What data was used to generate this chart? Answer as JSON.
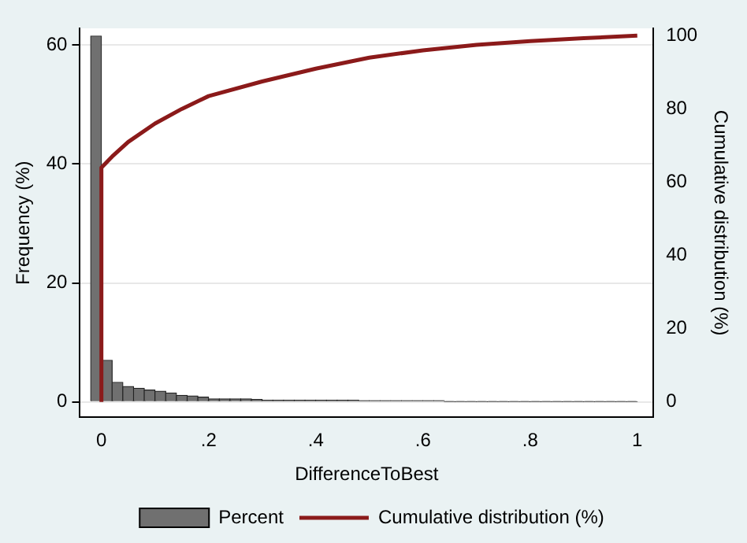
{
  "chart_data": {
    "type": "histogram",
    "xlabel": "DifferenceToBest",
    "ylabel": "Frequency (%)",
    "y2label": "Cumulative distribution (%)",
    "bins": [
      -0.02,
      0,
      0.02,
      0.04,
      0.06,
      0.08,
      0.1,
      0.12,
      0.14,
      0.16,
      0.18,
      0.2,
      0.22,
      0.24,
      0.26,
      0.28,
      0.3,
      0.32,
      0.34,
      0.36,
      0.38,
      0.4,
      0.42,
      0.44,
      0.46,
      0.48,
      0.5,
      0.52,
      0.54,
      0.56,
      0.58,
      0.6,
      0.62,
      0.64,
      0.66,
      0.68,
      0.7,
      0.72,
      0.74,
      0.76,
      0.78,
      0.8,
      0.82,
      0.84,
      0.86,
      0.88,
      0.9,
      0.92,
      0.94,
      0.96,
      0.98,
      1.0
    ],
    "series": [
      {
        "name": "Percent",
        "type": "histogram",
        "color": "#707070",
        "values": [
          61.5,
          7,
          3.3,
          2.6,
          2.3,
          2.0,
          1.8,
          1.5,
          1.1,
          1.0,
          0.8,
          0.5,
          0.5,
          0.5,
          0.5,
          0.4,
          0.3,
          0.3,
          0.3,
          0.3,
          0.3,
          0.3,
          0.3,
          0.3,
          0.3,
          0.2,
          0.2,
          0.2,
          0.2,
          0.2,
          0.2,
          0.2,
          0.2,
          0.1,
          0.1,
          0.1,
          0.1,
          0.1,
          0.1,
          0.1,
          0.1,
          0.1,
          0.1,
          0.1,
          0.1,
          0.1,
          0.1,
          0.1,
          0.1,
          0.1,
          0.1
        ]
      },
      {
        "name": "Cumulative distribution (%)",
        "type": "line",
        "axis": "y2",
        "color": "#8b1a1a",
        "x": [
          0,
          0,
          0.02,
          0.05,
          0.1,
          0.15,
          0.2,
          0.3,
          0.4,
          0.5,
          0.6,
          0.7,
          0.8,
          0.9,
          1.0
        ],
        "values": [
          0,
          64,
          67,
          71,
          76,
          80,
          83.5,
          87.5,
          91,
          94,
          96,
          97.5,
          98.5,
          99.3,
          100
        ]
      }
    ],
    "xlim": [
      -0.04,
      1.03
    ],
    "xticks": [
      0,
      {
        "value": 0.2,
        "label": ".2"
      },
      {
        "value": 0.4,
        "label": ".4"
      },
      {
        "value": 0.6,
        "label": ".6"
      },
      {
        "value": 0.8,
        "label": ".8"
      },
      1
    ],
    "ylim": [
      -2.6,
      62.8
    ],
    "yticks": [
      0,
      20,
      40,
      60
    ],
    "y2lim": [
      -4.2,
      102
    ],
    "y2ticks": [
      0,
      20,
      40,
      60,
      80,
      100
    ],
    "grid": "y",
    "legend": "bottom"
  }
}
